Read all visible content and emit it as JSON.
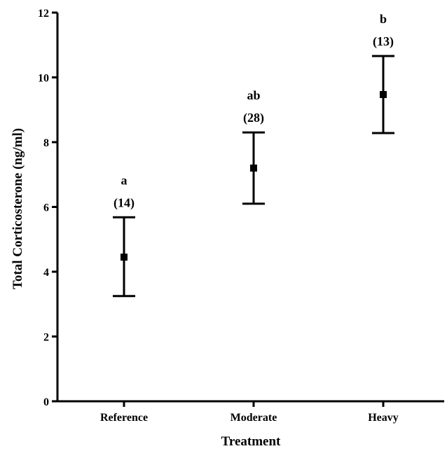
{
  "chart_data": {
    "type": "scatter",
    "xlabel": "Treatment",
    "ylabel": "Total Corticosterone (ng/ml)",
    "ylim": [
      0,
      12
    ],
    "yticks": [
      0,
      2,
      4,
      6,
      8,
      10,
      12
    ],
    "grid": false,
    "categories": [
      "Reference",
      "Moderate",
      "Heavy"
    ],
    "points": [
      {
        "category": "Reference",
        "mean": 4.45,
        "error_low": 3.25,
        "error_high": 5.68,
        "letter": "a",
        "n_label": "(14)"
      },
      {
        "category": "Moderate",
        "mean": 7.2,
        "error_low": 6.1,
        "error_high": 8.3,
        "letter": "ab",
        "n_label": "(28)"
      },
      {
        "category": "Heavy",
        "mean": 9.47,
        "error_low": 8.28,
        "error_high": 10.66,
        "letter": "b",
        "n_label": "(13)"
      }
    ]
  }
}
